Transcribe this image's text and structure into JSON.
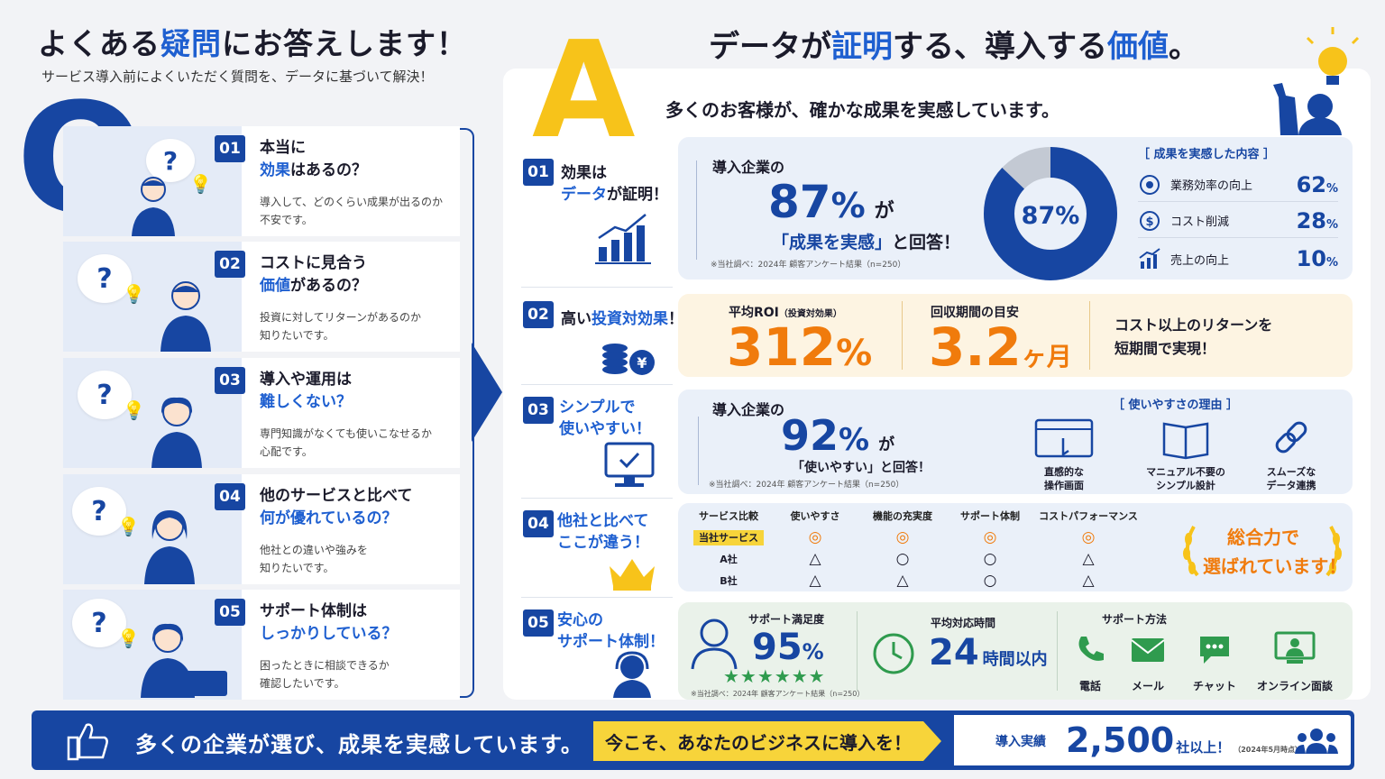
{
  "left": {
    "title_pre": "よくある",
    "title_hl": "疑問",
    "title_post": "にお答えします！",
    "subtitle": "サービス導入前によくいただく質問を、データに基づいて解決！",
    "big_letter": "Q",
    "questions": [
      {
        "num": "01",
        "line1": "本当に",
        "line2_hl": "効果",
        "line2_post": "はあるの？",
        "desc1": "導入して、どのくらい成果が出るのか",
        "desc2": "不安です。"
      },
      {
        "num": "02",
        "line1": "コストに見合う",
        "line2_hl": "価値",
        "line2_post": "があるの？",
        "desc1": "投資に対してリターンがあるのか",
        "desc2": "知りたいです。"
      },
      {
        "num": "03",
        "line1": "導入や運用は",
        "line2_hl": "難しくない？",
        "line2_post": "",
        "desc1": "専門知識がなくても使いこなせるか",
        "desc2": "心配です。"
      },
      {
        "num": "04",
        "line1": "他のサービスと比べて",
        "line2_hl": "何が優れているの？",
        "line2_post": "",
        "desc1": "他社との違いや強みを",
        "desc2": "知りたいです。"
      },
      {
        "num": "05",
        "line1": "サポート体制は",
        "line2_hl": "しっかりしている？",
        "line2_post": "",
        "desc1": "困ったときに相談できるか",
        "desc2": "確認したいです。"
      }
    ]
  },
  "right": {
    "big_letter": "A",
    "title_a": "データが",
    "title_hl1": "証明",
    "title_b": "する、導入する",
    "title_hl2": "価値",
    "title_c": "。",
    "subtitle": "多くのお客様が、確かな成果を実感しています。",
    "a1": {
      "num": "01",
      "label1": "効果は",
      "label2_hl": "データ",
      "label2_post": "が証明！",
      "intro": "導入企業の",
      "pct": "87",
      "pct_unit": "%",
      "ga": "が",
      "answer_hl": "「成果を実感」",
      "answer_post": "と回答！",
      "note": "※当社調べ：2024年 顧客アンケート結果（n=250）",
      "donut_label": "87%",
      "donut_value": 0.87,
      "list_title": "［ 成果を実感した内容 ］",
      "items": [
        {
          "icon": "target-icon",
          "label": "業務効率の向上",
          "value": "62",
          "unit": "%"
        },
        {
          "icon": "yen-coin-icon",
          "label": "コスト削減",
          "value": "28",
          "unit": "%"
        },
        {
          "icon": "growth-chart-icon",
          "label": "売上の向上",
          "value": "10",
          "unit": "%"
        }
      ]
    },
    "a2": {
      "num": "02",
      "label_pre": "高い",
      "label_hl": "投資対効果",
      "label_post": "！",
      "roi_label": "平均ROI",
      "roi_small": "（投資対効果）",
      "roi_value": "312",
      "roi_unit": "%",
      "payback_label": "回収期間の目安",
      "payback_value": "3.2",
      "payback_unit": "ヶ月",
      "claim1": "コスト以上のリターンを",
      "claim2": "短期間で実現！"
    },
    "a3": {
      "num": "03",
      "label1": "シンプルで",
      "label2": "使いやすい！",
      "intro": "導入企業の",
      "pct": "92",
      "pct_unit": "%",
      "ga": "が",
      "answer": "「使いやすい」と回答！",
      "note": "※当社調べ：2024年 顧客アンケート結果（n=250）",
      "reasons_title": "［ 使いやすさの理由 ］",
      "reasons": [
        {
          "icon": "touch-screen-icon",
          "l1": "直感的な",
          "l2": "操作画面"
        },
        {
          "icon": "manual-book-icon",
          "l1": "マニュアル不要の",
          "l2": "シンプル設計"
        },
        {
          "icon": "link-icon",
          "l1": "スムーズな",
          "l2": "データ連携"
        }
      ]
    },
    "a4": {
      "num": "04",
      "label1": "他社と比べて",
      "label2": "ここが違う！",
      "headers": [
        "サービス比較",
        "使いやすさ",
        "機能の充実度",
        "サポート体制",
        "コストパフォーマンス"
      ],
      "rows": [
        {
          "name": "当社サービス",
          "marks": [
            "◎",
            "◎",
            "◎",
            "◎"
          ]
        },
        {
          "name": "A社",
          "marks": [
            "△",
            "○",
            "○",
            "△"
          ]
        },
        {
          "name": "B社",
          "marks": [
            "△",
            "△",
            "○",
            "△"
          ]
        }
      ],
      "badge1": "総合力で",
      "badge2": "選ばれています！"
    },
    "a5": {
      "num": "05",
      "label1": "安心の",
      "label2": "サポート体制！",
      "sat_label": "サポート満足度",
      "sat_value": "95",
      "sat_unit": "%",
      "stars": "★★★★★★",
      "note": "※当社調べ：2024年 顧客アンケート結果（n=250）",
      "resp_label": "平均対応時間",
      "resp_value": "24",
      "resp_unit": "時間以内",
      "methods_title": "サポート方法",
      "methods": [
        {
          "icon": "phone-icon",
          "label": "電話"
        },
        {
          "icon": "mail-icon",
          "label": "メール"
        },
        {
          "icon": "chat-icon",
          "label": "チャット"
        },
        {
          "icon": "online-meeting-icon",
          "label": "オンライン面談"
        }
      ]
    }
  },
  "footer": {
    "message": "多くの企業が選び、成果を実感しています。",
    "cta": "今こそ、あなたのビジネスに導入を！",
    "results_label": "導入実績",
    "results_value": "2,500",
    "results_unit": "社以上！",
    "results_note": "（2024年5月時点）"
  },
  "colors": {
    "navy": "#1746a2",
    "blue": "#1e5fd0",
    "orange": "#f07b0c",
    "yellow": "#f7c31a"
  }
}
